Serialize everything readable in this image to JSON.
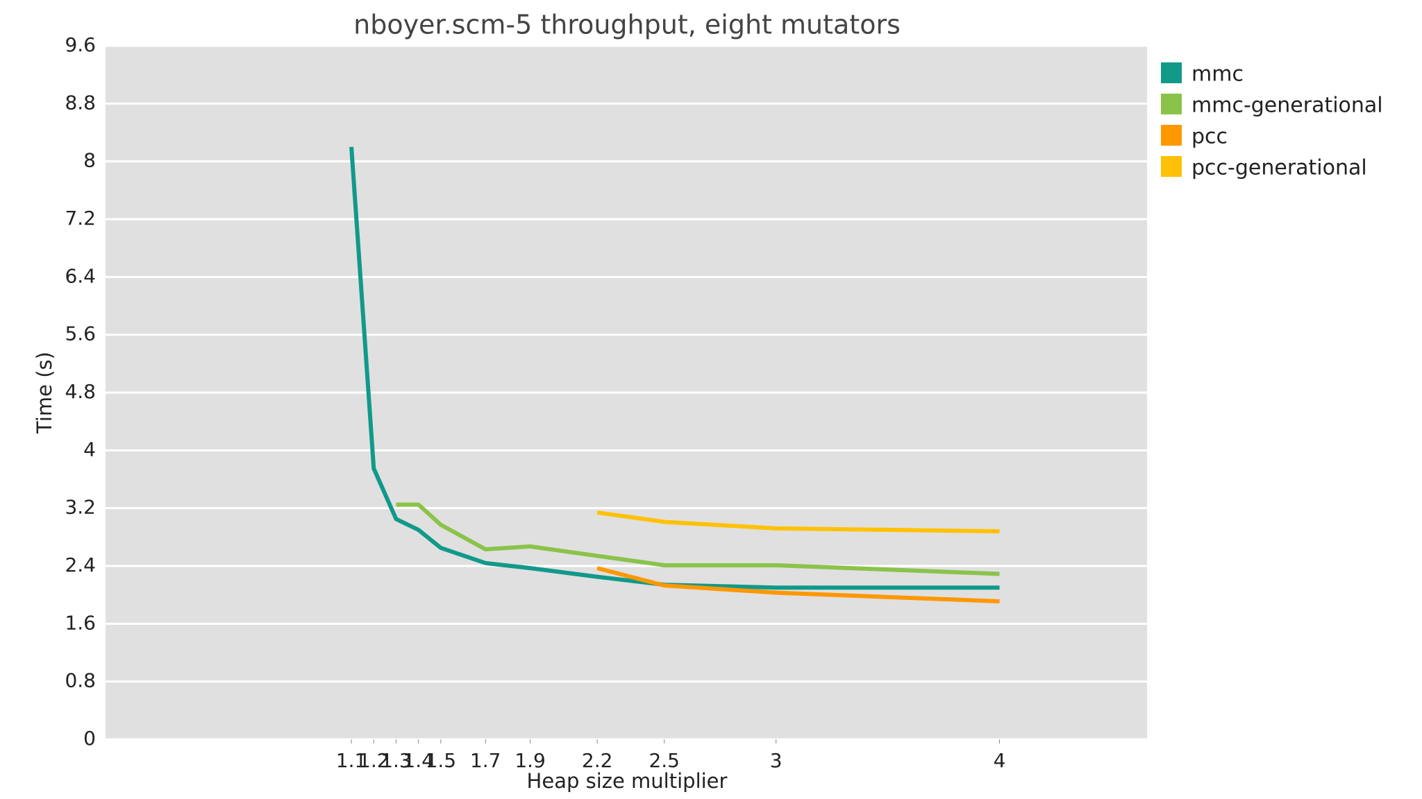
{
  "chart_data": {
    "type": "line",
    "title": "nboyer.scm-5 throughput, eight mutators",
    "xlabel": "Heap size multiplier",
    "ylabel": "Time (s)",
    "x": [
      1.1,
      1.2,
      1.3,
      1.4,
      1.5,
      1.7,
      1.9,
      2.2,
      2.5,
      3,
      4
    ],
    "series": [
      {
        "name": "mmc",
        "color": "#11998a",
        "values": [
          8.2,
          3.75,
          3.05,
          2.9,
          2.65,
          2.44,
          2.37,
          2.25,
          2.14,
          2.1,
          2.1
        ]
      },
      {
        "name": "mmc-generational",
        "color": "#8bc34a",
        "values": [
          null,
          null,
          3.25,
          3.25,
          2.97,
          2.63,
          2.67,
          2.54,
          2.41,
          2.41,
          2.29
        ]
      },
      {
        "name": "pcc",
        "color": "#ff9800",
        "values": [
          null,
          null,
          null,
          null,
          null,
          null,
          null,
          2.37,
          2.13,
          2.03,
          1.91
        ]
      },
      {
        "name": "pcc-generational",
        "color": "#ffc107",
        "values": [
          null,
          null,
          null,
          null,
          null,
          null,
          null,
          3.14,
          3.01,
          2.92,
          2.88
        ]
      }
    ],
    "xlim": [
      0,
      4.66
    ],
    "ylim": [
      0,
      9.6
    ],
    "xticks": [
      1.1,
      1.2,
      1.3,
      1.4,
      1.5,
      1.7,
      1.9,
      2.2,
      2.5,
      3,
      4
    ],
    "yticks": [
      0,
      0.8,
      1.6,
      2.4,
      3.2,
      4,
      4.8,
      5.6,
      6.4,
      7.2,
      8,
      8.8,
      9.6
    ],
    "grid": true,
    "legend": "right"
  }
}
